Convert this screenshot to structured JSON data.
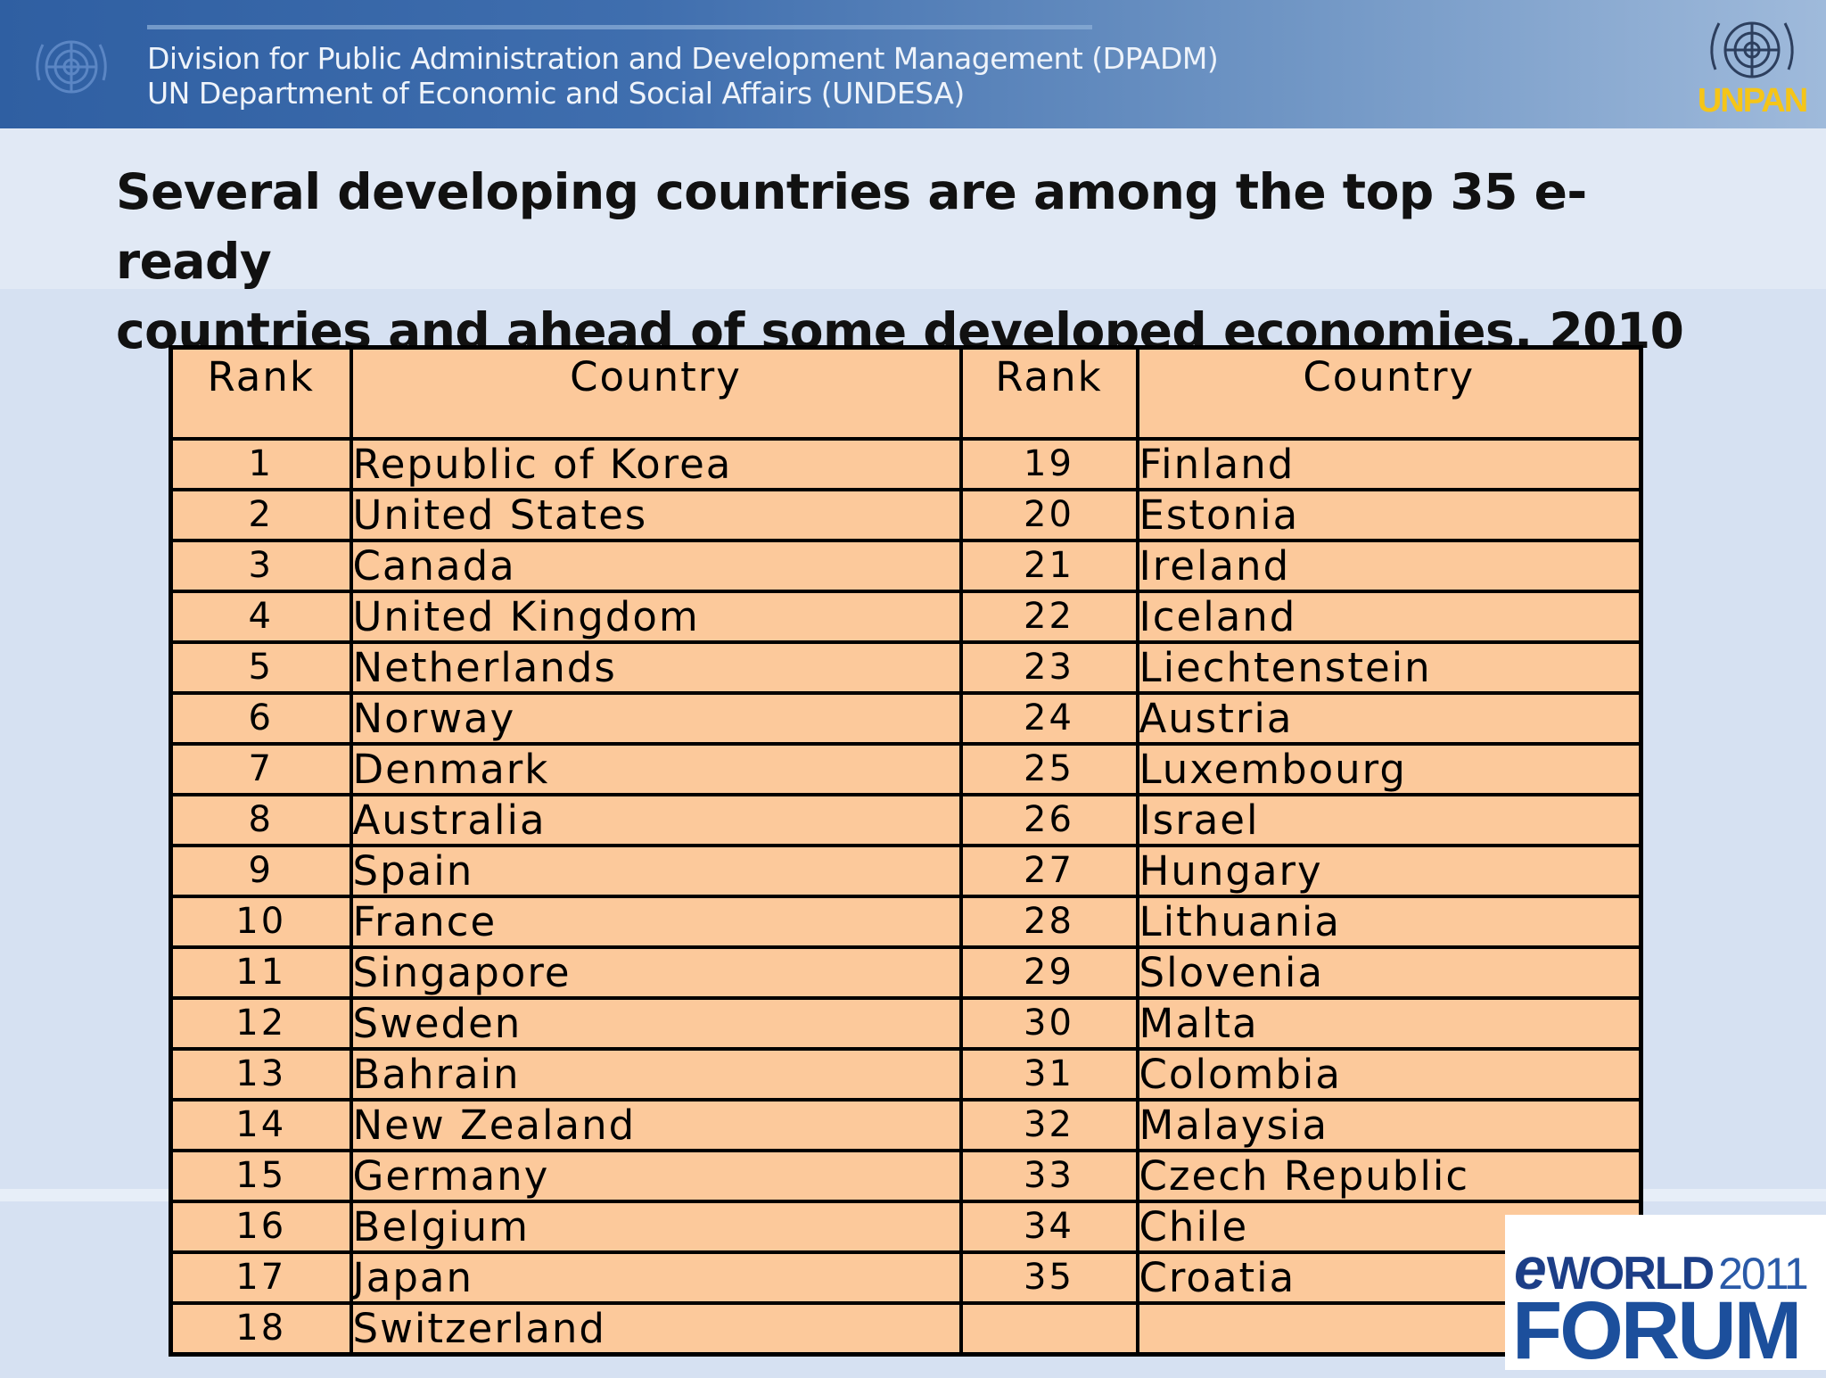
{
  "header": {
    "line1": "Division for Public Administration and Development Management (DPADM)",
    "line2": "UN Department of Economic and Social Affairs (UNDESA)",
    "logo_text": "UNPAN"
  },
  "title": {
    "line1": "Several developing countries are among the top 35 e-ready",
    "line2": "countries and ahead of some developed economies, 2010"
  },
  "table": {
    "headers": [
      "Rank",
      "Country",
      "Rank",
      "Country"
    ],
    "rows": [
      {
        "rank1": "1",
        "country1": "Republic of Korea",
        "rank2": "19",
        "country2": "Finland"
      },
      {
        "rank1": "2",
        "country1": "United States",
        "rank2": "20",
        "country2": "Estonia"
      },
      {
        "rank1": "3",
        "country1": "Canada",
        "rank2": "21",
        "country2": "Ireland"
      },
      {
        "rank1": "4",
        "country1": "United Kingdom",
        "rank2": "22",
        "country2": "Iceland"
      },
      {
        "rank1": "5",
        "country1": "Netherlands",
        "rank2": "23",
        "country2": "Liechtenstein"
      },
      {
        "rank1": "6",
        "country1": "Norway",
        "rank2": "24",
        "country2": "Austria"
      },
      {
        "rank1": "7",
        "country1": "Denmark",
        "rank2": "25",
        "country2": "Luxembourg"
      },
      {
        "rank1": "8",
        "country1": "Australia",
        "rank2": "26",
        "country2": "Israel"
      },
      {
        "rank1": "9",
        "country1": "Spain",
        "rank2": "27",
        "country2": "Hungary"
      },
      {
        "rank1": "10",
        "country1": "France",
        "rank2": "28",
        "country2": "Lithuania"
      },
      {
        "rank1": "11",
        "country1": "Singapore",
        "rank2": "29",
        "country2": "Slovenia"
      },
      {
        "rank1": "12",
        "country1": "Sweden",
        "rank2": "30",
        "country2": "Malta"
      },
      {
        "rank1": "13",
        "country1": "Bahrain",
        "rank2": "31",
        "country2": "Colombia"
      },
      {
        "rank1": "14",
        "country1": "New Zealand",
        "rank2": "32",
        "country2": "Malaysia"
      },
      {
        "rank1": "15",
        "country1": "Germany",
        "rank2": "33",
        "country2": "Czech Republic"
      },
      {
        "rank1": "16",
        "country1": "Belgium",
        "rank2": "34",
        "country2": "Chile"
      },
      {
        "rank1": "17",
        "country1": "Japan",
        "rank2": "35",
        "country2": "Croatia"
      },
      {
        "rank1": "18",
        "country1": "Switzerland",
        "rank2": "",
        "country2": ""
      }
    ]
  },
  "footer_logo": {
    "e": "e",
    "world": "WORLD",
    "year": "2011",
    "forum": "FORUM"
  },
  "colors": {
    "header_blue": "#2f5fa2",
    "table_fill": "#fcc99b",
    "logo_blue": "#1c4f9c",
    "unpan_gold": "#f5c518"
  }
}
